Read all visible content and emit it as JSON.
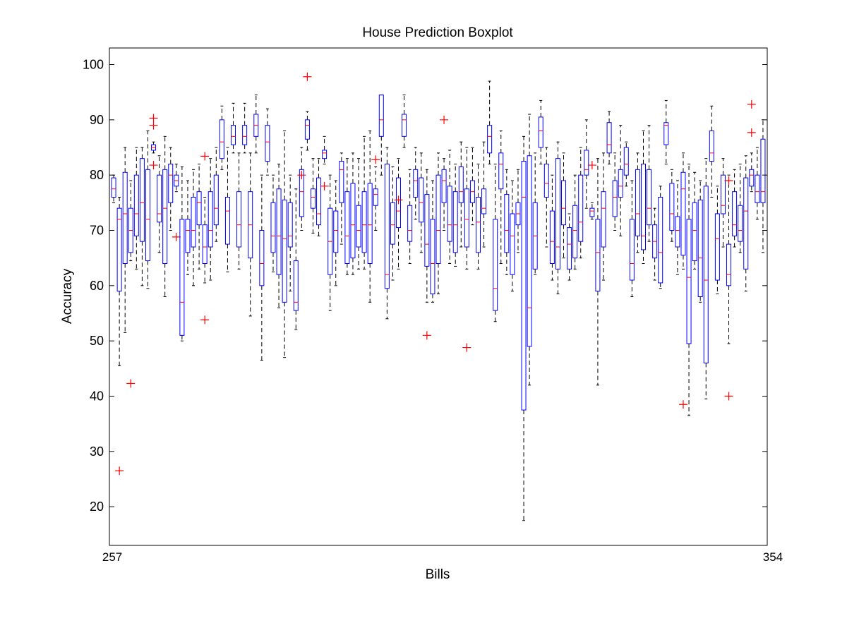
{
  "chart_data": {
    "type": "boxplot",
    "title": "House Prediction Boxplot",
    "xlabel": "Bills",
    "ylabel": "Accuracy",
    "ylim": [
      13,
      103
    ],
    "yticks": [
      20,
      30,
      40,
      50,
      60,
      70,
      80,
      90,
      100
    ],
    "grid": false,
    "legend": "none",
    "colors": {
      "box": "#0000ff",
      "median": "#ff0000",
      "whisker": "#000000",
      "outlier": "#ff0000",
      "axes": "#000000"
    },
    "xtick_labels": [
      "257",
      "354"
    ],
    "boxes": [
      {
        "q1": 76,
        "med": 77.5,
        "q3": 79.5,
        "lo": 75,
        "hi": 80,
        "out": []
      },
      {
        "q1": 59,
        "med": 72,
        "q3": 74,
        "lo": 45.5,
        "hi": 76,
        "out": [
          26.5
        ]
      },
      {
        "q1": 64,
        "med": 73,
        "q3": 80.5,
        "lo": 51.5,
        "hi": 85,
        "out": []
      },
      {
        "q1": 66,
        "med": 70,
        "q3": 74,
        "lo": 64.5,
        "hi": 79,
        "out": [
          42.3
        ]
      },
      {
        "q1": 69,
        "med": 73,
        "q3": 80,
        "lo": 63,
        "hi": 85,
        "out": []
      },
      {
        "q1": 68,
        "med": 75,
        "q3": 83,
        "lo": 60,
        "hi": 85,
        "out": []
      },
      {
        "q1": 64.5,
        "med": 72,
        "q3": 81,
        "lo": 59.5,
        "hi": 88,
        "out": []
      },
      {
        "q1": 84.5,
        "med": 85,
        "q3": 85.5,
        "lo": 84,
        "hi": 86,
        "out": [
          81.8,
          89,
          90.3
        ]
      },
      {
        "q1": 71.5,
        "med": 73,
        "q3": 80,
        "lo": 66,
        "hi": 83.5,
        "out": []
      },
      {
        "q1": 64,
        "med": 74,
        "q3": 81,
        "lo": 58,
        "hi": 87,
        "out": []
      },
      {
        "q1": 75,
        "med": 80,
        "q3": 82,
        "lo": 70,
        "hi": 85,
        "out": []
      },
      {
        "q1": 78,
        "med": 79,
        "q3": 80,
        "lo": 77,
        "hi": 82,
        "out": [
          68.8
        ]
      },
      {
        "q1": 51,
        "med": 57,
        "q3": 72,
        "lo": 50,
        "hi": 81.5,
        "out": []
      },
      {
        "q1": 66,
        "med": 70,
        "q3": 72,
        "lo": 62,
        "hi": 79,
        "out": []
      },
      {
        "q1": 67,
        "med": 70,
        "q3": 76,
        "lo": 60,
        "hi": 81,
        "out": []
      },
      {
        "q1": 71,
        "med": 75,
        "q3": 77,
        "lo": 63,
        "hi": 82,
        "out": []
      },
      {
        "q1": 64,
        "med": 67,
        "q3": 71,
        "lo": 60.5,
        "hi": 76,
        "out": [
          53.8,
          83.4
        ]
      },
      {
        "q1": 67,
        "med": 70,
        "q3": 77,
        "lo": 61,
        "hi": 83,
        "out": []
      },
      {
        "q1": 71,
        "med": 74,
        "q3": 80,
        "lo": 68,
        "hi": 85,
        "out": []
      },
      {
        "q1": 83,
        "med": 86,
        "q3": 90,
        "lo": 81,
        "hi": 92.5,
        "out": []
      },
      {
        "q1": 67.5,
        "med": 73.5,
        "q3": 76,
        "lo": 62.5,
        "hi": 85,
        "out": []
      },
      {
        "q1": 85.5,
        "med": 87,
        "q3": 89,
        "lo": 84,
        "hi": 93,
        "out": []
      },
      {
        "q1": 67,
        "med": 71,
        "q3": 77,
        "lo": 63,
        "hi": 84,
        "out": []
      },
      {
        "q1": 85.5,
        "med": 87,
        "q3": 89,
        "lo": 84,
        "hi": 93,
        "out": []
      },
      {
        "q1": 65,
        "med": 71,
        "q3": 77,
        "lo": 54.5,
        "hi": 84,
        "out": []
      },
      {
        "q1": 87,
        "med": 89,
        "q3": 91,
        "lo": 84,
        "hi": 94.5,
        "out": []
      },
      {
        "q1": 60,
        "med": 64,
        "q3": 70,
        "lo": 46.5,
        "hi": 80,
        "out": []
      },
      {
        "q1": 82.5,
        "med": 86,
        "q3": 89,
        "lo": 80,
        "hi": 92,
        "out": []
      },
      {
        "q1": 66,
        "med": 69,
        "q3": 75,
        "lo": 62.5,
        "hi": 80,
        "out": []
      },
      {
        "q1": 62,
        "med": 69,
        "q3": 77.5,
        "lo": 56,
        "hi": 82,
        "out": []
      },
      {
        "q1": 57,
        "med": 68.5,
        "q3": 75.5,
        "lo": 47,
        "hi": 88,
        "out": []
      },
      {
        "q1": 67,
        "med": 69,
        "q3": 75,
        "lo": 59,
        "hi": 80,
        "out": []
      },
      {
        "q1": 55.5,
        "med": 57,
        "q3": 64.5,
        "lo": 52,
        "hi": 77.5,
        "out": []
      },
      {
        "q1": 72.5,
        "med": 77,
        "q3": 81,
        "lo": 70,
        "hi": 85,
        "out": [
          80
        ]
      },
      {
        "q1": 86.5,
        "med": 89,
        "q3": 90,
        "lo": 84.5,
        "hi": 91.5,
        "out": [
          97.8
        ]
      },
      {
        "q1": 74,
        "med": 76,
        "q3": 77.5,
        "lo": 69.5,
        "hi": 83,
        "out": []
      },
      {
        "q1": 71,
        "med": 73,
        "q3": 79.5,
        "lo": 69,
        "hi": 83,
        "out": []
      },
      {
        "q1": 83,
        "med": 84,
        "q3": 84.5,
        "lo": 82,
        "hi": 87,
        "out": [
          78
        ]
      },
      {
        "q1": 62,
        "med": 68,
        "q3": 74,
        "lo": 55.5,
        "hi": 80,
        "out": []
      },
      {
        "q1": 66,
        "med": 70,
        "q3": 73.5,
        "lo": 60,
        "hi": 79,
        "out": []
      },
      {
        "q1": 75,
        "med": 81,
        "q3": 82.5,
        "lo": 67.5,
        "hi": 84,
        "out": []
      },
      {
        "q1": 64,
        "med": 69,
        "q3": 77,
        "lo": 62,
        "hi": 83,
        "out": []
      },
      {
        "q1": 65,
        "med": 71,
        "q3": 78.5,
        "lo": 62,
        "hi": 84,
        "out": []
      },
      {
        "q1": 67,
        "med": 70,
        "q3": 74.5,
        "lo": 63,
        "hi": 83,
        "out": []
      },
      {
        "q1": 66,
        "med": 71,
        "q3": 77,
        "lo": 63,
        "hi": 87,
        "out": []
      },
      {
        "q1": 64,
        "med": 71,
        "q3": 78.5,
        "lo": 57,
        "hi": 88,
        "out": []
      },
      {
        "q1": 74.5,
        "med": 76.5,
        "q3": 77.5,
        "lo": 70,
        "hi": 81.5,
        "out": [
          82.8
        ]
      },
      {
        "q1": 87,
        "med": 90,
        "q3": 94.5,
        "lo": 80,
        "hi": 94.5,
        "out": []
      },
      {
        "q1": 59.5,
        "med": 62,
        "q3": 82,
        "lo": 54,
        "hi": 85,
        "out": []
      },
      {
        "q1": 67.5,
        "med": 71,
        "q3": 75,
        "lo": 61,
        "hi": 81.5,
        "out": []
      },
      {
        "q1": 70.5,
        "med": 73.5,
        "q3": 79.5,
        "lo": 63,
        "hi": 83,
        "out": [
          75.5
        ]
      },
      {
        "q1": 87,
        "med": 90,
        "q3": 91,
        "lo": 85,
        "hi": 94.5,
        "out": []
      },
      {
        "q1": 68,
        "med": 70,
        "q3": 74.5,
        "lo": 64,
        "hi": 81,
        "out": []
      },
      {
        "q1": 76,
        "med": 79,
        "q3": 81,
        "lo": 72,
        "hi": 85,
        "out": []
      },
      {
        "q1": 71.5,
        "med": 75,
        "q3": 79.5,
        "lo": 66,
        "hi": 84,
        "out": []
      },
      {
        "q1": 63.5,
        "med": 67.5,
        "q3": 76.5,
        "lo": 57,
        "hi": 81,
        "out": [
          51
        ]
      },
      {
        "q1": 58.5,
        "med": 64,
        "q3": 72,
        "lo": 57,
        "hi": 79,
        "out": []
      },
      {
        "q1": 64,
        "med": 70,
        "q3": 80,
        "lo": 58.5,
        "hi": 84,
        "out": []
      },
      {
        "q1": 75,
        "med": 79,
        "q3": 81,
        "lo": 70,
        "hi": 83,
        "out": [
          90
        ]
      },
      {
        "q1": 68,
        "med": 71,
        "q3": 78,
        "lo": 64,
        "hi": 84.5,
        "out": []
      },
      {
        "q1": 66,
        "med": 71,
        "q3": 77,
        "lo": 63.5,
        "hi": 82,
        "out": []
      },
      {
        "q1": 75,
        "med": 77,
        "q3": 81.5,
        "lo": 67,
        "hi": 86,
        "out": []
      },
      {
        "q1": 67,
        "med": 72,
        "q3": 77.5,
        "lo": 63,
        "hi": 85,
        "out": [
          48.8
        ]
      },
      {
        "q1": 75,
        "med": 77,
        "q3": 79,
        "lo": 71,
        "hi": 85,
        "out": []
      },
      {
        "q1": 66,
        "med": 71.5,
        "q3": 76,
        "lo": 63,
        "hi": 82,
        "out": []
      },
      {
        "q1": 73,
        "med": 74,
        "q3": 77.5,
        "lo": 67,
        "hi": 86,
        "out": []
      },
      {
        "q1": 84,
        "med": 87,
        "q3": 89,
        "lo": 82,
        "hi": 97,
        "out": []
      },
      {
        "q1": 55.5,
        "med": 59.5,
        "q3": 72,
        "lo": 53.5,
        "hi": 82,
        "out": []
      },
      {
        "q1": 77.5,
        "med": 82,
        "q3": 84,
        "lo": 64,
        "hi": 88,
        "out": []
      },
      {
        "q1": 66,
        "med": 70,
        "q3": 76.5,
        "lo": 62,
        "hi": 81,
        "out": []
      },
      {
        "q1": 62,
        "med": 69,
        "q3": 73,
        "lo": 59,
        "hi": 79,
        "out": []
      },
      {
        "q1": 71,
        "med": 73,
        "q3": 75,
        "lo": 66,
        "hi": 81,
        "out": []
      },
      {
        "q1": 37.5,
        "med": 76,
        "q3": 82.5,
        "lo": 17.5,
        "hi": 87,
        "out": []
      },
      {
        "q1": 49,
        "med": 56,
        "q3": 83.5,
        "lo": 42,
        "hi": 91,
        "out": []
      },
      {
        "q1": 63,
        "med": 69,
        "q3": 75,
        "lo": 62,
        "hi": 84,
        "out": []
      },
      {
        "q1": 85,
        "med": 88,
        "q3": 90.5,
        "lo": 82,
        "hi": 93.5,
        "out": []
      },
      {
        "q1": 76,
        "med": 78.5,
        "q3": 82,
        "lo": 67,
        "hi": 85,
        "out": []
      },
      {
        "q1": 64,
        "med": 68,
        "q3": 73.5,
        "lo": 61,
        "hi": 80,
        "out": []
      },
      {
        "q1": 63,
        "med": 67,
        "q3": 83,
        "lo": 58.5,
        "hi": 86,
        "out": []
      },
      {
        "q1": 71,
        "med": 74,
        "q3": 79,
        "lo": 65,
        "hi": 84,
        "out": []
      },
      {
        "q1": 63,
        "med": 67.5,
        "q3": 70.5,
        "lo": 61,
        "hi": 73,
        "out": []
      },
      {
        "q1": 65,
        "med": 70,
        "q3": 74.5,
        "lo": 63,
        "hi": 80,
        "out": []
      },
      {
        "q1": 68,
        "med": 71.5,
        "q3": 80,
        "lo": 65,
        "hi": 85,
        "out": []
      },
      {
        "q1": 80,
        "med": 81,
        "q3": 84.5,
        "lo": 74,
        "hi": 90,
        "out": []
      },
      {
        "q1": 72.5,
        "med": 73.5,
        "q3": 74,
        "lo": 72,
        "hi": 75,
        "out": [
          81.8
        ]
      },
      {
        "q1": 59,
        "med": 66,
        "q3": 72,
        "lo": 42,
        "hi": 83,
        "out": []
      },
      {
        "q1": 67,
        "med": 74,
        "q3": 77,
        "lo": 61,
        "hi": 84,
        "out": []
      },
      {
        "q1": 84,
        "med": 85.5,
        "q3": 89.5,
        "lo": 82,
        "hi": 91.5,
        "out": []
      },
      {
        "q1": 72.5,
        "med": 76,
        "q3": 79,
        "lo": 70,
        "hi": 84,
        "out": []
      },
      {
        "q1": 76,
        "med": 78,
        "q3": 81,
        "lo": 69,
        "hi": 89,
        "out": []
      },
      {
        "q1": 80,
        "med": 82,
        "q3": 85,
        "lo": 78,
        "hi": 86,
        "out": []
      },
      {
        "q1": 61,
        "med": 64,
        "q3": 72,
        "lo": 58,
        "hi": 79,
        "out": []
      },
      {
        "q1": 69,
        "med": 73,
        "q3": 81,
        "lo": 66,
        "hi": 84,
        "out": []
      },
      {
        "q1": 66.5,
        "med": 69,
        "q3": 82,
        "lo": 64,
        "hi": 88,
        "out": []
      },
      {
        "q1": 71,
        "med": 74,
        "q3": 81,
        "lo": 68,
        "hi": 89,
        "out": []
      },
      {
        "q1": 65,
        "med": 68,
        "q3": 71,
        "lo": 61,
        "hi": 74,
        "out": []
      },
      {
        "q1": 60.5,
        "med": 66,
        "q3": 76,
        "lo": 59.5,
        "hi": 78,
        "out": []
      },
      {
        "q1": 85.5,
        "med": 89,
        "q3": 89.5,
        "lo": 82,
        "hi": 93.5,
        "out": []
      },
      {
        "q1": 70,
        "med": 73,
        "q3": 78.5,
        "lo": 68,
        "hi": 81,
        "out": []
      },
      {
        "q1": 67,
        "med": 70,
        "q3": 72.5,
        "lo": 62,
        "hi": 79,
        "out": []
      },
      {
        "q1": 65.5,
        "med": 77.5,
        "q3": 80.5,
        "lo": 63,
        "hi": 84,
        "out": [
          38.5
        ]
      },
      {
        "q1": 49.5,
        "med": 61.5,
        "q3": 72,
        "lo": 36.5,
        "hi": 82,
        "out": []
      },
      {
        "q1": 64.5,
        "med": 70,
        "q3": 75,
        "lo": 63,
        "hi": 80.5,
        "out": []
      },
      {
        "q1": 58,
        "med": 65,
        "q3": 75.5,
        "lo": 57,
        "hi": 79,
        "out": []
      },
      {
        "q1": 46,
        "med": 61,
        "q3": 78,
        "lo": 39.5,
        "hi": 83,
        "out": []
      },
      {
        "q1": 82.5,
        "med": 84,
        "q3": 88,
        "lo": 76,
        "hi": 92.5,
        "out": []
      },
      {
        "q1": 61,
        "med": 68.5,
        "q3": 73,
        "lo": 58.5,
        "hi": 78,
        "out": []
      },
      {
        "q1": 73,
        "med": 74.5,
        "q3": 80,
        "lo": 67,
        "hi": 83,
        "out": []
      },
      {
        "q1": 60,
        "med": 62,
        "q3": 67.5,
        "lo": 49.5,
        "hi": 80,
        "out": [
          40,
          79
        ]
      },
      {
        "q1": 69,
        "med": 71,
        "q3": 77,
        "lo": 67,
        "hi": 81,
        "out": []
      },
      {
        "q1": 68,
        "med": 70,
        "q3": 74.5,
        "lo": 66,
        "hi": 82,
        "out": []
      },
      {
        "q1": 63,
        "med": 73.5,
        "q3": 79.5,
        "lo": 59,
        "hi": 83.5,
        "out": []
      },
      {
        "q1": 78,
        "med": 80,
        "q3": 81,
        "lo": 77,
        "hi": 84,
        "out": [
          87.7,
          92.8
        ]
      },
      {
        "q1": 75,
        "med": 77,
        "q3": 80,
        "lo": 72,
        "hi": 85,
        "out": []
      },
      {
        "q1": 75,
        "med": 77,
        "q3": 86.5,
        "lo": 66,
        "hi": 90,
        "out": []
      }
    ]
  }
}
